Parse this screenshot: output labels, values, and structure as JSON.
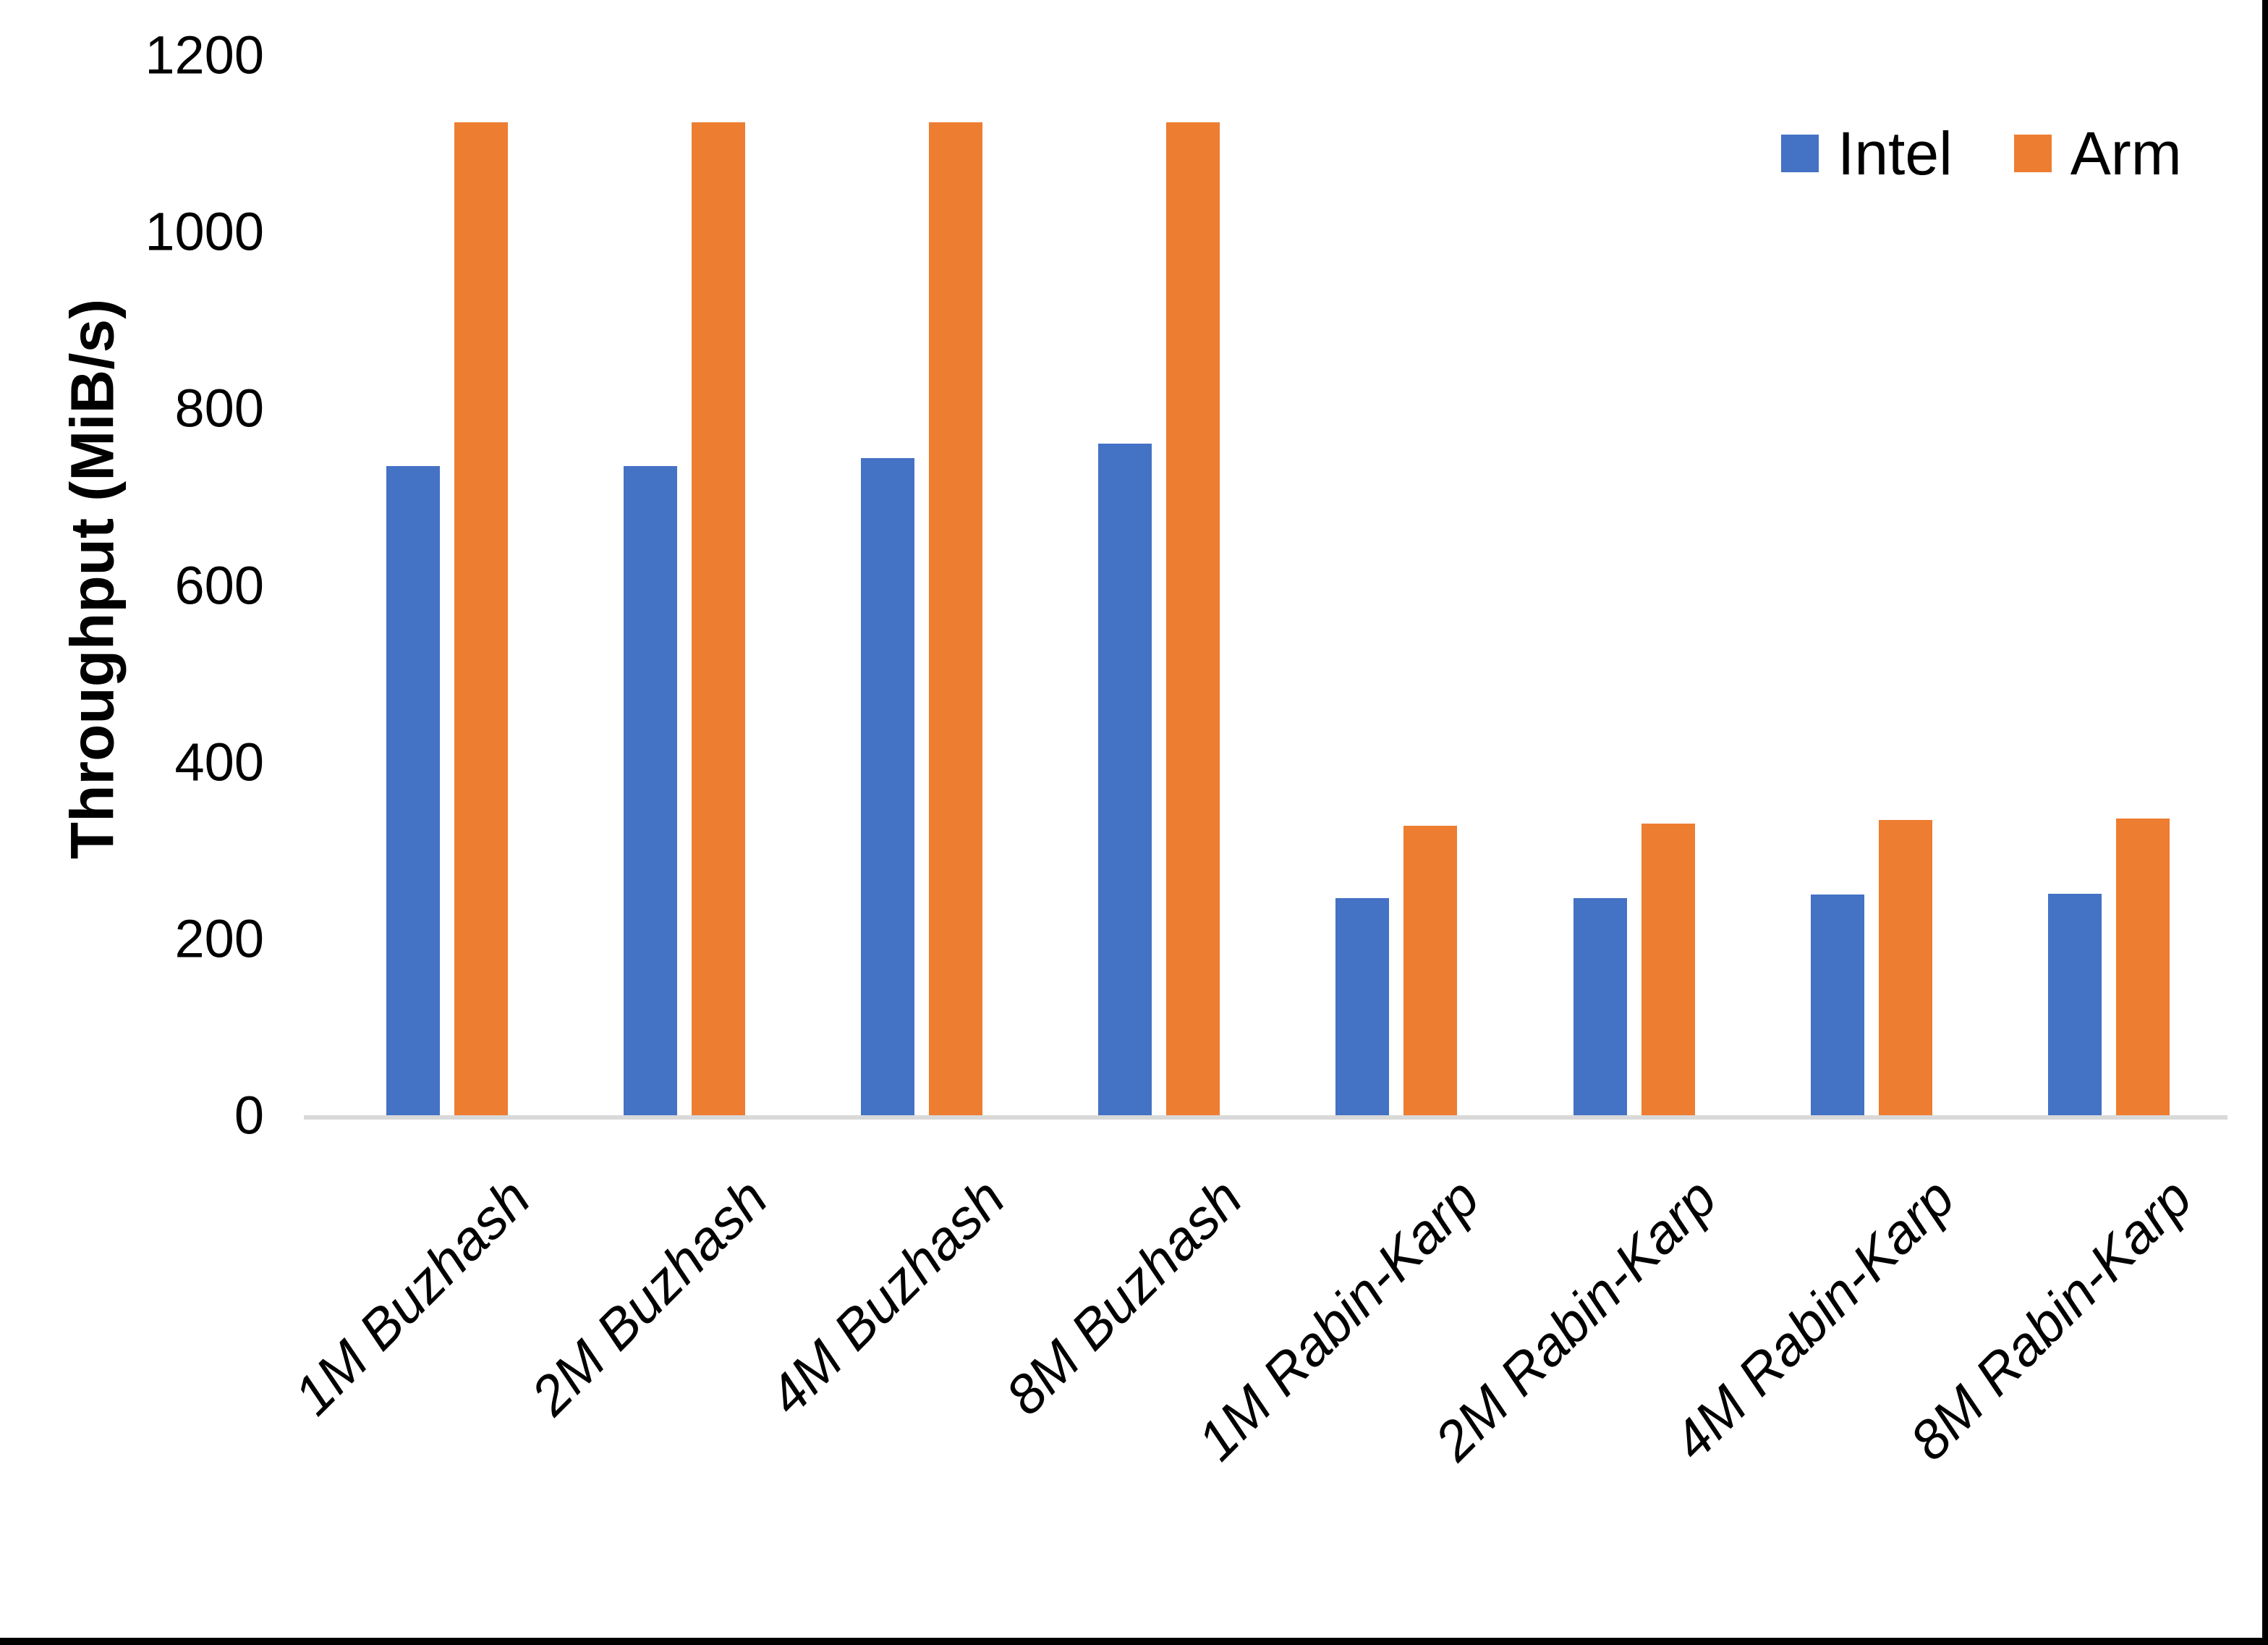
{
  "chart_data": {
    "type": "bar",
    "title": "",
    "ylabel": "Throughput (MiB/s)",
    "xlabel": "",
    "categories": [
      "1M Buzhash",
      "2M Buzhash",
      "4M Buzhash",
      "8M Buzhash",
      "1M Rabin-Karp",
      "2M Rabin-Karp",
      "4M Rabin-Karp",
      "8M Rabin-Karp"
    ],
    "series": [
      {
        "name": "Intel",
        "color": "#4472C4",
        "values": [
          735,
          735,
          744,
          760,
          246,
          246,
          250,
          251
        ]
      },
      {
        "name": "Arm",
        "color": "#ED7D31",
        "values": [
          1124,
          1124,
          1124,
          1124,
          328,
          330,
          334,
          336
        ]
      }
    ],
    "ylim": [
      0,
      1200
    ],
    "yticks": [
      0,
      200,
      400,
      600,
      800,
      1000,
      1200
    ],
    "grid": false,
    "legend_position": "top-right",
    "axis_line_color": "#D9D9D9",
    "x_label_rotation_deg": -45,
    "x_label_style": "italic"
  }
}
